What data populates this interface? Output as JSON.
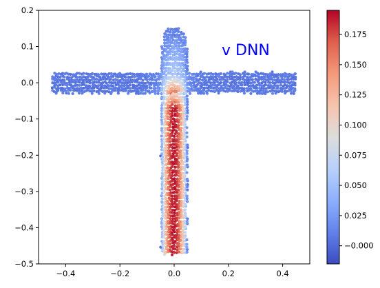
{
  "chart_data": {
    "type": "scatter",
    "annotation": "v DNN",
    "annotation_color": "#0000ff",
    "colormap": "coolwarm",
    "xlim": [
      -0.5,
      0.5
    ],
    "ylim": [
      -0.5,
      0.2
    ],
    "x_ticks": [
      -0.4,
      -0.2,
      0.0,
      0.2,
      0.4
    ],
    "x_tick_labels": [
      "−0.4",
      "−0.2",
      "0.0",
      "0.2",
      "0.4"
    ],
    "y_ticks": [
      -0.5,
      -0.4,
      -0.3,
      -0.2,
      -0.1,
      0.0,
      0.1,
      0.2
    ],
    "y_tick_labels": [
      "−0.5",
      "−0.4",
      "−0.3",
      "−0.2",
      "−0.1",
      "0.0",
      "0.1",
      "0.2"
    ],
    "colorbar": {
      "range": [
        -0.015,
        0.195
      ],
      "ticks": [
        0.0,
        0.025,
        0.05,
        0.075,
        0.1,
        0.125,
        0.15,
        0.175
      ],
      "tick_labels": [
        "−0.000",
        "0.025",
        "0.050",
        "0.075",
        "0.100",
        "0.125",
        "0.150",
        "0.175"
      ]
    },
    "domain": {
      "horizontal_bar": {
        "x": [
          -0.45,
          0.45
        ],
        "y": [
          -0.03,
          0.03
        ]
      },
      "vertical_bar": {
        "x": [
          -0.05,
          0.05
        ],
        "y": [
          -0.475,
          0.11
        ]
      },
      "top_cap": {
        "center_x": 0.0,
        "center_y": 0.11,
        "radius": 0.045
      }
    },
    "grid": false
  }
}
